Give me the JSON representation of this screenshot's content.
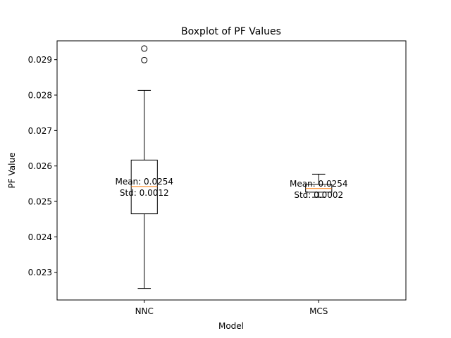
{
  "chart_data": {
    "type": "boxplot",
    "title": "Boxplot of PF Values",
    "xlabel": "Model",
    "ylabel": "PF Value",
    "ylim": [
      0.02222,
      0.02953
    ],
    "yticks": [
      0.023,
      0.024,
      0.025,
      0.026,
      0.027,
      0.028,
      0.029
    ],
    "ytick_labels": [
      "0.023",
      "0.024",
      "0.025",
      "0.026",
      "0.027",
      "0.028",
      "0.029"
    ],
    "grid": false,
    "boxes": [
      {
        "category": "NNC",
        "whisker_low": 0.022545,
        "q1": 0.024651,
        "median": 0.025421,
        "q3": 0.026167,
        "whisker_high": 0.028131,
        "outliers": [
          0.028987,
          0.029313
        ],
        "annotation": [
          "Mean: 0.0254",
          "Std: 0.0012"
        ]
      },
      {
        "category": "MCS",
        "whisker_low": 0.025117,
        "q1": 0.025261,
        "median": 0.025363,
        "q3": 0.025485,
        "whisker_high": 0.025767,
        "outliers": [],
        "annotation": [
          "Mean: 0.0254",
          "Std: 0.0002"
        ]
      }
    ],
    "colors": {
      "median": "#ff7f0e",
      "box": "#000000",
      "axes": "#000000"
    }
  }
}
